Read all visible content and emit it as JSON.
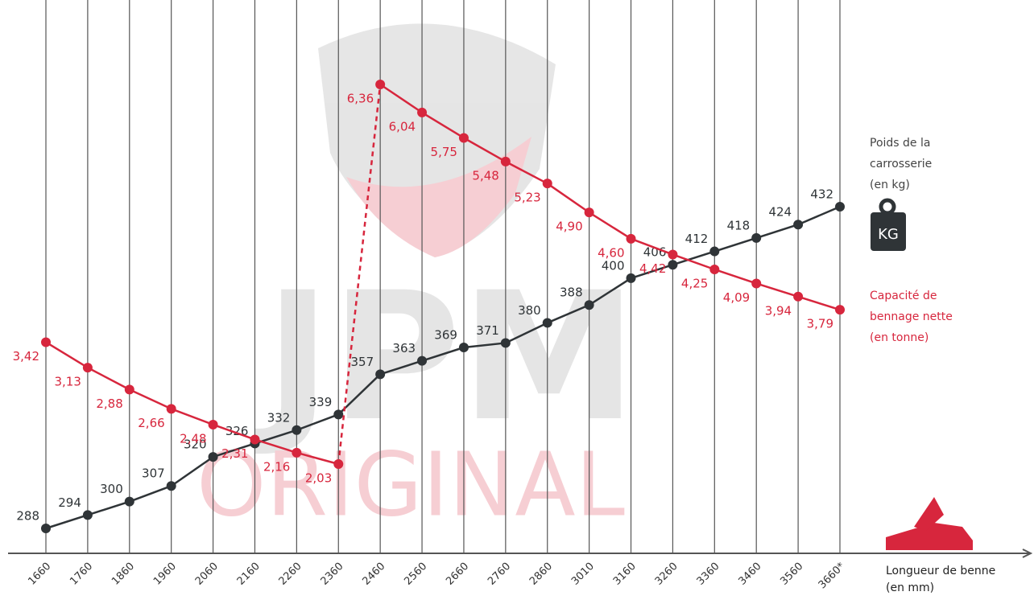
{
  "chart_data": {
    "type": "line",
    "categories": [
      "1660",
      "1760",
      "1860",
      "1960",
      "2060",
      "2160",
      "2260",
      "2360",
      "2460",
      "2560",
      "2660",
      "2760",
      "2860",
      "3010",
      "3160",
      "3260",
      "3360",
      "3460",
      "3560",
      "3660*"
    ],
    "series": [
      {
        "name": [
          "Poids de la",
          "carrosserie",
          "(en kg)"
        ],
        "color": "#2f3437",
        "values": [
          288,
          294,
          300,
          307,
          320,
          326,
          332,
          339,
          357,
          363,
          369,
          371,
          380,
          388,
          400,
          406,
          412,
          418,
          424,
          432
        ]
      },
      {
        "name": [
          "Capacité de",
          "bennage nette",
          "(en tonne)"
        ],
        "color": "#d7263d",
        "values": [
          3.42,
          3.13,
          2.88,
          2.66,
          2.48,
          2.31,
          2.16,
          2.03,
          6.36,
          6.04,
          5.75,
          5.48,
          5.23,
          4.9,
          4.6,
          4.42,
          4.25,
          4.09,
          3.94,
          3.79
        ],
        "value_labels": [
          "3,42",
          "3,13",
          "2,88",
          "2,66",
          "2,48",
          "2,31",
          "2,16",
          "2,03",
          "6,36",
          "6,04",
          "5,75",
          "5,48",
          "5,23",
          "4,90",
          "4,60",
          "4,42",
          "4,25",
          "4,09",
          "3,94",
          "3,79"
        ]
      }
    ],
    "icon_label": "KG",
    "xlabel": [
      "Longueur de benne",
      "(en mm)"
    ],
    "watermark": [
      "JPM",
      "ORIGINAL"
    ]
  }
}
